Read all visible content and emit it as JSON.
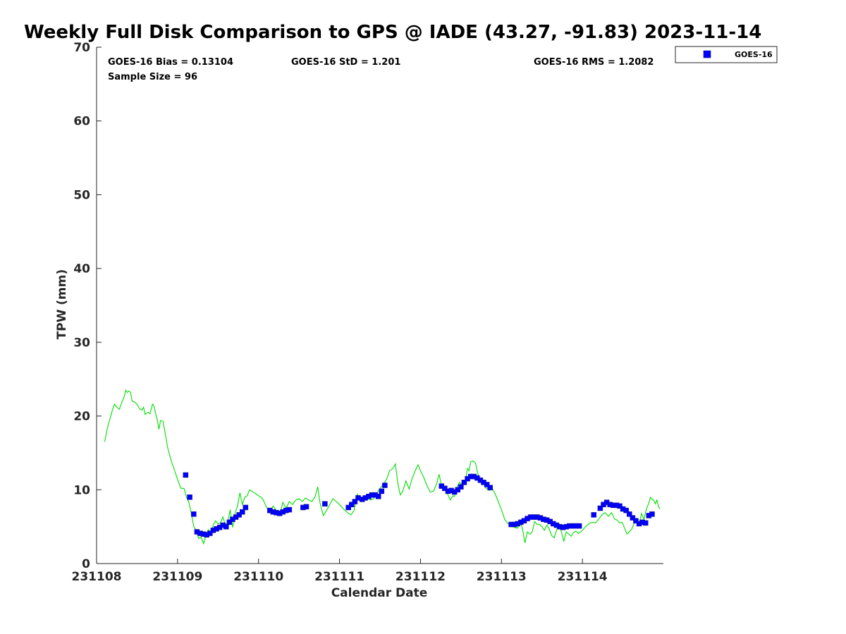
{
  "chart_data": {
    "type": "scatter",
    "title": "Weekly Full Disk Comparison to GPS @ IADE (43.27, -91.83) 2023-11-14",
    "xlabel": "Calendar Date",
    "ylabel": "TPW (mm)",
    "xlim": [
      "231108",
      "231114 24:00"
    ],
    "ylim": [
      0,
      70
    ],
    "yticks": [
      0,
      10,
      20,
      30,
      40,
      50,
      60,
      70
    ],
    "xtick_labels": [
      "231108",
      "231109",
      "231110",
      "231111",
      "231112",
      "231113",
      "231114"
    ],
    "grid": false,
    "legend_position": "top-right",
    "stats": {
      "bias": "GOES-16 Bias = 0.13104",
      "std": "GOES-16 StD = 1.201",
      "rms": "GOES-16 RMS = 1.2082",
      "sample": "Sample Size = 96"
    },
    "series": [
      {
        "name": "GOES-16",
        "kind": "scatter",
        "marker": "square",
        "color": "#0000ff",
        "x_unit": "days since 231108 00:00",
        "points": [
          [
            1.1,
            12.0
          ],
          [
            1.15,
            9.0
          ],
          [
            1.2,
            6.7
          ],
          [
            1.24,
            4.3
          ],
          [
            1.28,
            4.1
          ],
          [
            1.32,
            4.0
          ],
          [
            1.36,
            3.9
          ],
          [
            1.4,
            4.1
          ],
          [
            1.44,
            4.5
          ],
          [
            1.48,
            4.7
          ],
          [
            1.52,
            4.9
          ],
          [
            1.56,
            5.2
          ],
          [
            1.6,
            5.0
          ],
          [
            1.64,
            5.6
          ],
          [
            1.68,
            6.0
          ],
          [
            1.72,
            6.3
          ],
          [
            1.76,
            6.6
          ],
          [
            1.8,
            7.0
          ],
          [
            1.84,
            7.6
          ],
          [
            2.14,
            7.2
          ],
          [
            2.18,
            7.0
          ],
          [
            2.22,
            6.9
          ],
          [
            2.26,
            6.8
          ],
          [
            2.3,
            7.0
          ],
          [
            2.34,
            7.2
          ],
          [
            2.38,
            7.3
          ],
          [
            2.55,
            7.6
          ],
          [
            2.59,
            7.7
          ],
          [
            2.82,
            8.1
          ],
          [
            3.11,
            7.6
          ],
          [
            3.15,
            8.0
          ],
          [
            3.19,
            8.4
          ],
          [
            3.23,
            8.9
          ],
          [
            3.28,
            8.7
          ],
          [
            3.32,
            8.9
          ],
          [
            3.36,
            9.1
          ],
          [
            3.4,
            9.3
          ],
          [
            3.44,
            9.3
          ],
          [
            3.48,
            9.1
          ],
          [
            3.52,
            9.8
          ],
          [
            3.56,
            10.6
          ],
          [
            4.26,
            10.5
          ],
          [
            4.3,
            10.2
          ],
          [
            4.34,
            9.8
          ],
          [
            4.38,
            9.9
          ],
          [
            4.42,
            9.7
          ],
          [
            4.46,
            10.0
          ],
          [
            4.5,
            10.4
          ],
          [
            4.54,
            11.0
          ],
          [
            4.58,
            11.5
          ],
          [
            4.62,
            11.8
          ],
          [
            4.66,
            11.8
          ],
          [
            4.7,
            11.6
          ],
          [
            4.74,
            11.3
          ],
          [
            4.78,
            11.0
          ],
          [
            4.82,
            10.7
          ],
          [
            4.86,
            10.3
          ],
          [
            5.12,
            5.3
          ],
          [
            5.16,
            5.3
          ],
          [
            5.2,
            5.4
          ],
          [
            5.24,
            5.6
          ],
          [
            5.28,
            5.8
          ],
          [
            5.32,
            6.1
          ],
          [
            5.36,
            6.3
          ],
          [
            5.4,
            6.3
          ],
          [
            5.44,
            6.3
          ],
          [
            5.48,
            6.2
          ],
          [
            5.52,
            6.0
          ],
          [
            5.56,
            5.9
          ],
          [
            5.6,
            5.7
          ],
          [
            5.64,
            5.4
          ],
          [
            5.68,
            5.2
          ],
          [
            5.72,
            5.0
          ],
          [
            5.76,
            4.9
          ],
          [
            5.8,
            5.0
          ],
          [
            5.84,
            5.1
          ],
          [
            5.88,
            5.1
          ],
          [
            5.92,
            5.1
          ],
          [
            5.96,
            5.1
          ],
          [
            6.14,
            6.6
          ],
          [
            6.22,
            7.5
          ],
          [
            6.26,
            8.0
          ],
          [
            6.3,
            8.3
          ],
          [
            6.34,
            8.0
          ],
          [
            6.38,
            7.9
          ],
          [
            6.42,
            7.9
          ],
          [
            6.46,
            7.8
          ],
          [
            6.5,
            7.4
          ],
          [
            6.54,
            7.2
          ],
          [
            6.58,
            6.7
          ],
          [
            6.62,
            6.2
          ],
          [
            6.66,
            5.8
          ],
          [
            6.7,
            5.4
          ],
          [
            6.74,
            5.6
          ],
          [
            6.78,
            5.5
          ],
          [
            6.82,
            6.5
          ],
          [
            6.86,
            6.7
          ]
        ]
      },
      {
        "name": "GPS",
        "kind": "line",
        "color": "#00dd00",
        "x_unit": "days since 231108 00:00",
        "points": [
          [
            0.1,
            16.5
          ],
          [
            0.13,
            18.2
          ],
          [
            0.16,
            19.4
          ],
          [
            0.19,
            20.6
          ],
          [
            0.22,
            21.6
          ],
          [
            0.25,
            21.2
          ],
          [
            0.28,
            20.9
          ],
          [
            0.31,
            21.8
          ],
          [
            0.34,
            22.6
          ],
          [
            0.36,
            23.5
          ],
          [
            0.38,
            23.2
          ],
          [
            0.4,
            23.4
          ],
          [
            0.42,
            23.2
          ],
          [
            0.44,
            22.0
          ],
          [
            0.47,
            21.9
          ],
          [
            0.5,
            21.6
          ],
          [
            0.53,
            21.0
          ],
          [
            0.56,
            20.8
          ],
          [
            0.58,
            21.2
          ],
          [
            0.6,
            20.2
          ],
          [
            0.62,
            20.4
          ],
          [
            0.64,
            20.5
          ],
          [
            0.66,
            20.3
          ],
          [
            0.69,
            21.6
          ],
          [
            0.71,
            21.3
          ],
          [
            0.73,
            20.3
          ],
          [
            0.75,
            19.5
          ],
          [
            0.77,
            18.2
          ],
          [
            0.79,
            19.4
          ],
          [
            0.82,
            19.3
          ],
          [
            0.85,
            17.5
          ],
          [
            0.88,
            15.6
          ],
          [
            0.92,
            14.0
          ],
          [
            0.96,
            12.7
          ],
          [
            1.0,
            11.4
          ],
          [
            1.04,
            10.2
          ],
          [
            1.08,
            10.2
          ],
          [
            1.11,
            9.0
          ],
          [
            1.14,
            8.3
          ],
          [
            1.17,
            6.8
          ],
          [
            1.2,
            5.0
          ],
          [
            1.23,
            4.5
          ],
          [
            1.26,
            3.4
          ],
          [
            1.29,
            3.6
          ],
          [
            1.32,
            2.7
          ],
          [
            1.35,
            3.8
          ],
          [
            1.38,
            4.6
          ],
          [
            1.41,
            4.1
          ],
          [
            1.44,
            5.2
          ],
          [
            1.47,
            5.8
          ],
          [
            1.5,
            5.4
          ],
          [
            1.53,
            5.5
          ],
          [
            1.56,
            6.3
          ],
          [
            1.59,
            5.3
          ],
          [
            1.62,
            5.6
          ],
          [
            1.65,
            7.3
          ],
          [
            1.68,
            4.9
          ],
          [
            1.71,
            6.8
          ],
          [
            1.74,
            7.8
          ],
          [
            1.77,
            9.6
          ],
          [
            1.8,
            8.0
          ],
          [
            1.83,
            9.0
          ],
          [
            1.86,
            9.2
          ],
          [
            1.89,
            10.0
          ],
          [
            1.92,
            9.8
          ],
          [
            1.96,
            9.5
          ],
          [
            2.0,
            9.2
          ],
          [
            2.05,
            8.8
          ],
          [
            2.1,
            7.6
          ],
          [
            2.14,
            6.9
          ],
          [
            2.18,
            7.8
          ],
          [
            2.22,
            7.2
          ],
          [
            2.26,
            6.5
          ],
          [
            2.3,
            8.3
          ],
          [
            2.34,
            7.5
          ],
          [
            2.38,
            8.4
          ],
          [
            2.42,
            8.0
          ],
          [
            2.46,
            8.6
          ],
          [
            2.5,
            8.8
          ],
          [
            2.54,
            8.4
          ],
          [
            2.58,
            8.9
          ],
          [
            2.62,
            8.6
          ],
          [
            2.66,
            8.4
          ],
          [
            2.7,
            9.1
          ],
          [
            2.73,
            10.4
          ],
          [
            2.76,
            8.2
          ],
          [
            2.8,
            6.5
          ],
          [
            2.84,
            7.2
          ],
          [
            2.88,
            8.0
          ],
          [
            2.92,
            8.8
          ],
          [
            2.96,
            8.4
          ],
          [
            3.0,
            8.0
          ],
          [
            3.05,
            7.4
          ],
          [
            3.1,
            6.9
          ],
          [
            3.14,
            6.6
          ],
          [
            3.18,
            7.2
          ],
          [
            3.22,
            9.4
          ],
          [
            3.26,
            8.6
          ],
          [
            3.3,
            9.0
          ],
          [
            3.34,
            9.2
          ],
          [
            3.38,
            8.6
          ],
          [
            3.42,
            8.8
          ],
          [
            3.46,
            9.5
          ],
          [
            3.5,
            10.2
          ],
          [
            3.54,
            10.7
          ],
          [
            3.58,
            11.4
          ],
          [
            3.62,
            12.6
          ],
          [
            3.66,
            12.9
          ],
          [
            3.69,
            13.5
          ],
          [
            3.72,
            10.9
          ],
          [
            3.75,
            9.3
          ],
          [
            3.78,
            9.8
          ],
          [
            3.82,
            11.2
          ],
          [
            3.86,
            10.1
          ],
          [
            3.9,
            11.6
          ],
          [
            3.94,
            12.7
          ],
          [
            3.97,
            13.4
          ],
          [
            4.0,
            12.6
          ],
          [
            4.04,
            11.7
          ],
          [
            4.08,
            10.6
          ],
          [
            4.12,
            9.7
          ],
          [
            4.16,
            9.8
          ],
          [
            4.2,
            10.8
          ],
          [
            4.23,
            12.1
          ],
          [
            4.26,
            10.6
          ],
          [
            4.3,
            10.2
          ],
          [
            4.34,
            9.3
          ],
          [
            4.37,
            8.6
          ],
          [
            4.4,
            9.2
          ],
          [
            4.42,
            9.1
          ],
          [
            4.44,
            10.1
          ],
          [
            4.48,
            11.0
          ],
          [
            4.52,
            10.6
          ],
          [
            4.56,
            11.4
          ],
          [
            4.58,
            12.9
          ],
          [
            4.6,
            12.6
          ],
          [
            4.62,
            13.8
          ],
          [
            4.65,
            13.9
          ],
          [
            4.68,
            13.6
          ],
          [
            4.71,
            12.1
          ],
          [
            4.74,
            11.3
          ],
          [
            4.78,
            11.0
          ],
          [
            4.81,
            10.2
          ],
          [
            4.85,
            9.9
          ],
          [
            4.88,
            10.3
          ],
          [
            4.92,
            9.5
          ],
          [
            4.96,
            8.4
          ],
          [
            5.0,
            7.3
          ],
          [
            5.04,
            6.0
          ],
          [
            5.08,
            5.4
          ],
          [
            5.12,
            5.4
          ],
          [
            5.16,
            4.9
          ],
          [
            5.2,
            4.8
          ],
          [
            5.23,
            5.8
          ],
          [
            5.26,
            4.7
          ],
          [
            5.29,
            2.8
          ],
          [
            5.32,
            4.3
          ],
          [
            5.35,
            4.0
          ],
          [
            5.38,
            4.3
          ],
          [
            5.41,
            5.7
          ],
          [
            5.44,
            5.3
          ],
          [
            5.47,
            5.3
          ],
          [
            5.5,
            5.0
          ],
          [
            5.53,
            4.5
          ],
          [
            5.56,
            5.2
          ],
          [
            5.59,
            4.7
          ],
          [
            5.62,
            3.8
          ],
          [
            5.65,
            3.5
          ],
          [
            5.68,
            4.5
          ],
          [
            5.71,
            5.4
          ],
          [
            5.74,
            4.3
          ],
          [
            5.77,
            3.0
          ],
          [
            5.8,
            4.3
          ],
          [
            5.83,
            4.0
          ],
          [
            5.86,
            3.7
          ],
          [
            5.89,
            4.2
          ],
          [
            5.92,
            4.4
          ],
          [
            5.95,
            4.1
          ],
          [
            6.0,
            4.5
          ],
          [
            6.04,
            5.0
          ],
          [
            6.08,
            5.4
          ],
          [
            6.12,
            5.6
          ],
          [
            6.16,
            5.5
          ],
          [
            6.2,
            6.0
          ],
          [
            6.24,
            6.6
          ],
          [
            6.28,
            6.9
          ],
          [
            6.32,
            6.4
          ],
          [
            6.36,
            6.9
          ],
          [
            6.4,
            6.0
          ],
          [
            6.43,
            5.9
          ],
          [
            6.46,
            5.5
          ],
          [
            6.49,
            5.6
          ],
          [
            6.52,
            4.8
          ],
          [
            6.55,
            4.0
          ],
          [
            6.58,
            4.3
          ],
          [
            6.61,
            4.7
          ],
          [
            6.64,
            5.5
          ],
          [
            6.67,
            5.8
          ],
          [
            6.7,
            5.4
          ],
          [
            6.73,
            6.8
          ],
          [
            6.76,
            6.0
          ],
          [
            6.79,
            7.4
          ],
          [
            6.82,
            8.2
          ],
          [
            6.84,
            9.0
          ],
          [
            6.86,
            8.7
          ],
          [
            6.88,
            8.6
          ],
          [
            6.9,
            8.1
          ],
          [
            6.92,
            8.6
          ],
          [
            6.94,
            7.7
          ],
          [
            6.96,
            7.4
          ]
        ]
      }
    ]
  }
}
